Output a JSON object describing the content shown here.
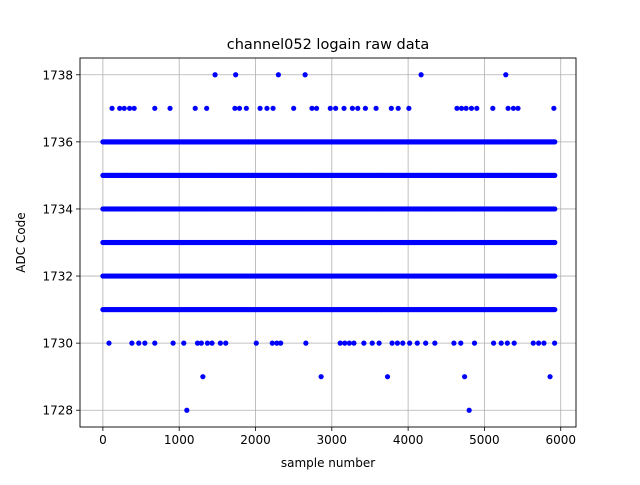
{
  "chart_data": {
    "type": "scatter",
    "title": "channel052 logain raw data",
    "xlabel": "sample number",
    "ylabel": "ADC Code",
    "xlim": [
      -300,
      6200
    ],
    "ylim": [
      1727.5,
      1738.5
    ],
    "xticks": [
      0,
      1000,
      2000,
      3000,
      4000,
      5000,
      6000
    ],
    "yticks": [
      1728,
      1730,
      1732,
      1734,
      1736,
      1738
    ],
    "xtick_labels": [
      "0",
      "1000",
      "2000",
      "3000",
      "4000",
      "5000",
      "6000"
    ],
    "ytick_labels": [
      "1728",
      "1730",
      "1732",
      "1734",
      "1736",
      "1738"
    ],
    "grid": true,
    "marker_color": "#0000ff",
    "sample_count": 5930,
    "dense_levels": [
      1731,
      1732,
      1733,
      1734,
      1735,
      1736
    ],
    "series": [
      {
        "values_by_level": {
          "1728": [
            1100,
            4800
          ],
          "1729": [
            1310,
            2860,
            3730,
            4740,
            5860
          ],
          "1730": [
            80,
            380,
            470,
            550,
            680,
            920,
            1060,
            1240,
            1290,
            1370,
            1430,
            1540,
            1610,
            2010,
            2220,
            2280,
            2330,
            2660,
            3110,
            3170,
            3230,
            3290,
            3420,
            3530,
            3620,
            3790,
            3860,
            3930,
            4020,
            4120,
            4230,
            4350,
            4600,
            4690,
            4870,
            5120,
            5220,
            5300,
            5390,
            5640,
            5710,
            5780,
            5920
          ],
          "1737": [
            120,
            220,
            280,
            350,
            410,
            680,
            880,
            1210,
            1360,
            1730,
            1790,
            1880,
            2060,
            2150,
            2230,
            2500,
            2740,
            2800,
            2980,
            3050,
            3160,
            3270,
            3340,
            3440,
            3580,
            3780,
            3870,
            4010,
            4640,
            4700,
            4760,
            4830,
            4900,
            5110,
            5310,
            5380,
            5440,
            5910
          ],
          "1738": [
            1470,
            1740,
            2300,
            2650,
            4170,
            5280
          ]
        }
      }
    ]
  }
}
